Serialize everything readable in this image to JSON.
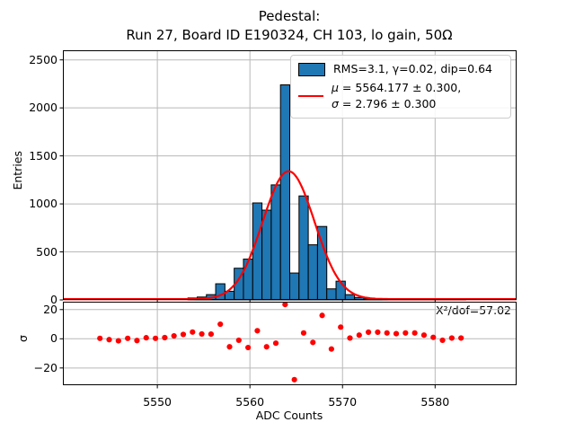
{
  "title_line1": "Pedestal:",
  "title_line2": "Run 27, Board ID E190324, CH 103, lo gain, 50Ω",
  "colors": {
    "bar_fill": "#1f77b4",
    "bar_edge": "#000000",
    "fit_line": "#ff0000",
    "residual_dots": "#ff0000",
    "grid": "#b8b8b8",
    "spine": "#000000"
  },
  "chart_data": [
    {
      "type": "bar",
      "title": "Pedestal: Run 27, Board ID E190324, CH 103, lo gain, 50Ω",
      "ylabel": "Entries",
      "xlabel": "",
      "grid": true,
      "xlim": [
        5539.8,
        5588.8
      ],
      "ylim": [
        0,
        2600
      ],
      "xticks": [
        5550,
        5560,
        5570,
        5580
      ],
      "yticks": [
        0,
        500,
        1000,
        1500,
        2000,
        2500
      ],
      "bin_width": 1.0,
      "bin_left_edges": [
        5553.3,
        5554.3,
        5555.3,
        5556.3,
        5557.3,
        5558.3,
        5559.3,
        5560.3,
        5561.3,
        5562.3,
        5563.3,
        5564.3,
        5565.3,
        5566.3,
        5567.3,
        5568.3,
        5569.3,
        5570.3,
        5571.3,
        5572.3,
        5573.3,
        5574.3,
        5575.3,
        5576.3,
        5577.3,
        5578.3,
        5579.3,
        5580.3,
        5581.3,
        5582.3
      ],
      "counts": [
        20,
        30,
        55,
        168,
        90,
        330,
        425,
        1010,
        935,
        1198,
        2240,
        280,
        1083,
        574,
        765,
        115,
        195,
        55,
        25,
        10,
        5,
        3,
        2,
        2,
        5,
        8,
        4,
        2,
        2,
        1
      ],
      "fit": {
        "shape": "gaussian",
        "mu": 5564.177,
        "sigma": 2.796,
        "amplitude": 1332,
        "offset": 8
      }
    },
    {
      "type": "scatter",
      "ylabel": "σ",
      "xlabel": "ADC Counts",
      "grid": true,
      "xlim": [
        5539.8,
        5588.8
      ],
      "ylim": [
        -31.8,
        25.4
      ],
      "xticks": [
        5550,
        5560,
        5570,
        5580
      ],
      "yticks": [
        20,
        0,
        -20
      ],
      "annotation": "Χ²/dof=57.02",
      "x": [
        5543.8,
        5544.8,
        5545.8,
        5546.8,
        5547.8,
        5548.8,
        5549.8,
        5550.8,
        5551.8,
        5552.8,
        5553.8,
        5554.8,
        5555.8,
        5556.8,
        5557.8,
        5558.8,
        5559.8,
        5560.8,
        5561.8,
        5562.8,
        5563.8,
        5564.8,
        5565.8,
        5566.8,
        5567.8,
        5568.8,
        5569.8,
        5570.8,
        5571.8,
        5572.8,
        5573.8,
        5574.8,
        5575.8,
        5576.8,
        5577.8,
        5578.8,
        5579.8,
        5580.8,
        5581.8,
        5582.8
      ],
      "y": [
        0.3,
        -0.6,
        -1.4,
        0.3,
        -1.2,
        0.7,
        0.3,
        0.8,
        2.0,
        3.0,
        4.6,
        3.3,
        3.2,
        10.0,
        -5.5,
        -1.0,
        -6.0,
        5.5,
        -5.5,
        -3.0,
        23.5,
        -28.0,
        4.0,
        -2.5,
        16.0,
        -7.0,
        8.0,
        0.5,
        2.5,
        4.5,
        4.5,
        4.0,
        3.5,
        4.0,
        4.0,
        2.5,
        1.0,
        -1.0,
        0.5,
        0.5
      ]
    }
  ],
  "legend": {
    "entries": [
      {
        "type": "patch",
        "label": "RMS=3.1, γ=0.02, dip=0.64"
      },
      {
        "type": "line",
        "sym1": "μ",
        "line1": " = 5564.177 ± 0.300,",
        "sym2": "σ",
        "line2": " = 2.796 ± 0.300"
      }
    ]
  },
  "labels": {
    "ylabel_main": "Entries",
    "ylabel_res": "σ",
    "xlabel": "ADC Counts",
    "chi2": "Χ²/dof=57.02"
  }
}
